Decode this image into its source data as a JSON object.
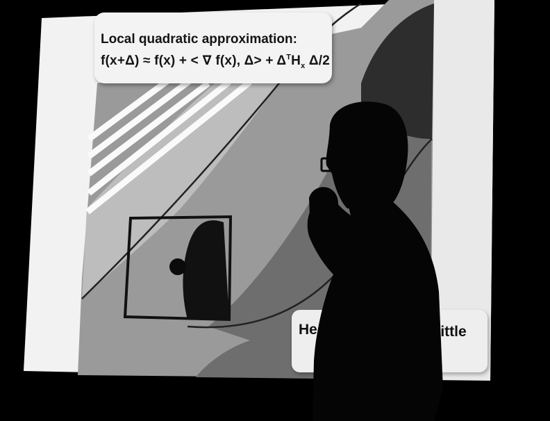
{
  "slide": {
    "title": "Local quadratic approximation:",
    "formula_main": "f(x+Δ) ≈ f(x) + < ∇ f(x), Δ> + Δ",
    "formula_sup": "T",
    "formula_h": "H",
    "formula_sub": "x",
    "formula_end": " Δ/2",
    "hess_left": "Hess",
    "hess_right": "y little"
  },
  "colors": {
    "background": "#000000",
    "screen_light": "#f4f4f4",
    "contour_mid": "#8c8c8c",
    "contour_dark": "#2a2a2a",
    "silhouette": "#050505"
  },
  "elements": {
    "speaker": "person-silhouette",
    "region_box": "approximation-square"
  }
}
